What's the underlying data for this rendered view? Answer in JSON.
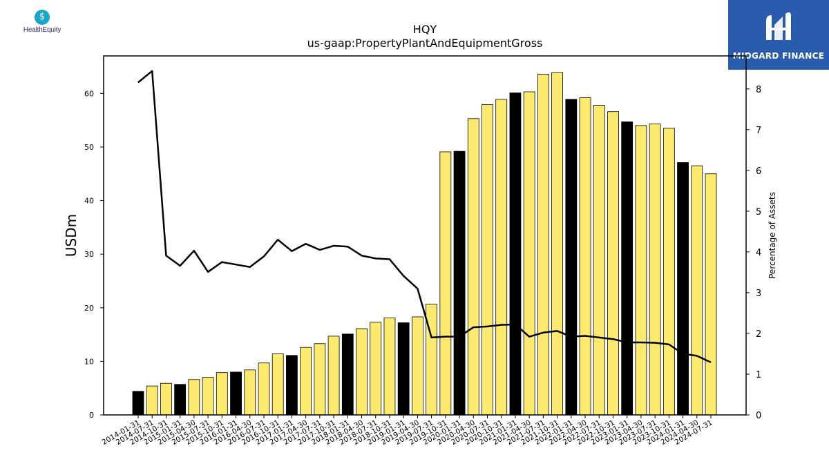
{
  "logos": {
    "left_text": "HealthEquity",
    "right_text": "MIDGARD FINANCE"
  },
  "chart_data": {
    "type": "bar",
    "title": "HQY",
    "subtitle": "us-gaap:PropertyPlantAndEquipmentGross",
    "ylabel": "USDm",
    "y2label": "Percentage of Assets",
    "ylim": [
      0,
      67
    ],
    "y2lim": [
      0,
      8.81
    ],
    "yticks": [
      0,
      10,
      20,
      30,
      40,
      50,
      60
    ],
    "y2ticks": [
      0,
      1,
      2,
      3,
      4,
      5,
      6,
      7,
      8
    ],
    "categories": [
      "2014-01-31",
      "2014-07-31",
      "2014-10-31",
      "2015-01-31",
      "2015-04-30",
      "2015-07-31",
      "2015-10-31",
      "2016-01-31",
      "2016-04-30",
      "2016-07-31",
      "2016-10-31",
      "2017-01-31",
      "2017-04-30",
      "2017-07-31",
      "2017-10-31",
      "2018-01-31",
      "2018-04-30",
      "2018-07-31",
      "2018-10-31",
      "2019-01-31",
      "2019-04-30",
      "2019-07-31",
      "2019-10-31",
      "2020-01-31",
      "2020-04-30",
      "2020-07-31",
      "2020-10-31",
      "2021-01-31",
      "2021-04-30",
      "2021-07-31",
      "2021-10-31",
      "2022-01-31",
      "2022-04-30",
      "2022-07-31",
      "2022-10-31",
      "2023-01-31",
      "2023-04-30",
      "2023-07-31",
      "2023-10-31",
      "2024-01-31",
      "2024-04-30",
      "2024-07-31"
    ],
    "series": [
      {
        "name": "USDm",
        "kind": "bar",
        "values": [
          4.4,
          5.4,
          5.9,
          5.7,
          6.6,
          7.0,
          7.9,
          8.0,
          8.4,
          9.7,
          11.4,
          11.1,
          12.6,
          13.3,
          14.7,
          15.1,
          16.1,
          17.3,
          18.1,
          17.2,
          18.3,
          20.7,
          49.1,
          49.2,
          55.3,
          57.9,
          58.9,
          60.1,
          60.3,
          63.6,
          63.9,
          58.9,
          59.2,
          57.8,
          56.6,
          54.7,
          54.0,
          54.3,
          53.5,
          47.1,
          46.5,
          45.0
        ],
        "highlight": [
          true,
          false,
          false,
          true,
          false,
          false,
          false,
          true,
          false,
          false,
          false,
          true,
          false,
          false,
          false,
          true,
          false,
          false,
          false,
          true,
          false,
          false,
          false,
          true,
          false,
          false,
          false,
          true,
          false,
          false,
          false,
          true,
          false,
          false,
          false,
          true,
          false,
          false,
          false,
          true,
          false,
          false
        ]
      },
      {
        "name": "Percentage of Assets",
        "kind": "line",
        "axis": "right",
        "values": [
          8.16,
          8.44,
          3.91,
          3.66,
          4.03,
          3.51,
          3.75,
          3.69,
          3.63,
          3.89,
          4.3,
          4.02,
          4.2,
          4.05,
          4.15,
          4.13,
          3.91,
          3.84,
          3.82,
          3.41,
          3.1,
          1.9,
          1.92,
          1.92,
          2.15,
          2.17,
          2.21,
          2.22,
          1.92,
          2.02,
          2.06,
          1.92,
          1.94,
          1.9,
          1.86,
          1.78,
          1.78,
          1.77,
          1.73,
          1.5,
          1.45,
          1.29
        ]
      }
    ],
    "colors": {
      "bar": "#fcea6e",
      "bar_highlight": "#000000",
      "bar_edge": "#000000",
      "line": "#000000"
    },
    "grid": false,
    "legend": "none"
  }
}
